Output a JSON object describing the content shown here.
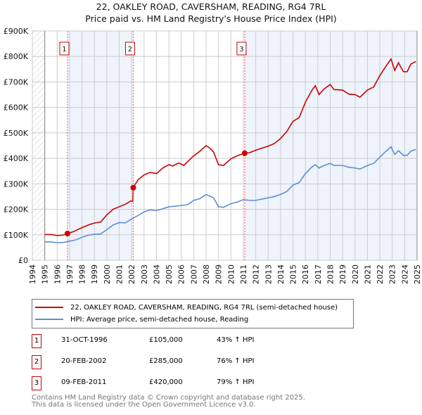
{
  "title_line1": "22, OAKLEY ROAD, CAVERSHAM, READING, RG4 7RL",
  "title_line2": "Price paid vs. HM Land Registry's House Price Index (HPI)",
  "colors": {
    "property": "#cc0000",
    "hpi": "#5b8fd4",
    "shade": "#eef3fc"
  },
  "chart_data": {
    "type": "line",
    "xlim": [
      1994,
      2025
    ],
    "ylim": [
      0,
      900000
    ],
    "ytick_labels": [
      "£0",
      "£100K",
      "£200K",
      "£300K",
      "£400K",
      "£500K",
      "£600K",
      "£700K",
      "£800K",
      "£900K"
    ],
    "yticks": [
      0,
      100000,
      200000,
      300000,
      400000,
      500000,
      600000,
      700000,
      800000,
      900000
    ],
    "xticks": [
      1994,
      1995,
      1996,
      1997,
      1998,
      1999,
      2000,
      2001,
      2002,
      2003,
      2004,
      2005,
      2006,
      2007,
      2008,
      2009,
      2010,
      2011,
      2012,
      2013,
      2014,
      2015,
      2016,
      2017,
      2018,
      2019,
      2020,
      2021,
      2022,
      2023,
      2024,
      2025
    ],
    "grid": true,
    "series": [
      {
        "name": "22, OAKLEY ROAD, CAVERSHAM, READING, RG4 7RL (semi-detached house)",
        "color": "#cc0000",
        "x": [
          1995,
          1995.5,
          1996,
          1996.5,
          1996.83,
          1997.3,
          1998,
          1998.6,
          1999,
          1999.5,
          2000,
          2000.5,
          2001,
          2001.5,
          2001.9,
          2002.1,
          2002.13,
          2002.5,
          2003,
          2003.5,
          2004,
          2004.5,
          2005,
          2005.3,
          2005.8,
          2006.2,
          2007,
          2007.5,
          2008,
          2008.3,
          2008.6,
          2009,
          2009.4,
          2010,
          2010.5,
          2011.1,
          2011.5,
          2012,
          2012.5,
          2013,
          2013.5,
          2014,
          2014.5,
          2015,
          2015.5,
          2016,
          2016.5,
          2016.8,
          2017.1,
          2017.5,
          2018,
          2018.3,
          2019,
          2019.5,
          2020,
          2020.4,
          2021,
          2021.5,
          2022,
          2022.5,
          2022.9,
          2023.2,
          2023.5,
          2023.9,
          2024.2,
          2024.5,
          2024.9
        ],
        "y": [
          101000,
          101000,
          97000,
          99000,
          105000,
          112000,
          128000,
          140000,
          146000,
          150000,
          178000,
          200000,
          210000,
          220000,
          232000,
          232000,
          285000,
          315000,
          335000,
          345000,
          340000,
          362000,
          375000,
          370000,
          382000,
          372000,
          410000,
          428000,
          450000,
          440000,
          425000,
          375000,
          372000,
          398000,
          410000,
          420000,
          422000,
          432000,
          440000,
          448000,
          458000,
          478000,
          505000,
          545000,
          560000,
          620000,
          665000,
          685000,
          650000,
          672000,
          690000,
          670000,
          668000,
          652000,
          650000,
          640000,
          668000,
          680000,
          725000,
          762000,
          790000,
          745000,
          775000,
          740000,
          740000,
          770000,
          780000
        ]
      },
      {
        "name": "HPI: Average price, semi-detached house, Reading",
        "color": "#5b8fd4",
        "x": [
          1995,
          1995.5,
          1996,
          1996.5,
          1997,
          1997.5,
          1998,
          1998.5,
          1999,
          1999.5,
          2000,
          2000.5,
          2001,
          2001.5,
          2002,
          2002.5,
          2003,
          2003.5,
          2004,
          2004.5,
          2005,
          2005.5,
          2006,
          2006.5,
          2007,
          2007.5,
          2008,
          2008.3,
          2008.6,
          2009,
          2009.4,
          2010,
          2010.5,
          2011,
          2011.5,
          2012,
          2012.5,
          2013,
          2013.5,
          2014,
          2014.5,
          2015,
          2015.5,
          2016,
          2016.5,
          2016.8,
          2017.1,
          2017.5,
          2018,
          2018.3,
          2019,
          2019.5,
          2020,
          2020.4,
          2021,
          2021.5,
          2022,
          2022.5,
          2022.9,
          2023.2,
          2023.5,
          2023.9,
          2024.2,
          2024.5,
          2024.9
        ],
        "y": [
          72000,
          72000,
          69000,
          70000,
          75000,
          80000,
          90000,
          98000,
          102000,
          103000,
          120000,
          138000,
          148000,
          147000,
          162000,
          175000,
          190000,
          198000,
          195000,
          202000,
          210000,
          212000,
          215000,
          218000,
          235000,
          242000,
          258000,
          252000,
          245000,
          210000,
          208000,
          222000,
          228000,
          238000,
          235000,
          235000,
          240000,
          245000,
          250000,
          258000,
          270000,
          295000,
          305000,
          340000,
          365000,
          375000,
          362000,
          372000,
          380000,
          372000,
          372000,
          365000,
          362000,
          358000,
          372000,
          380000,
          405000,
          428000,
          445000,
          415000,
          430000,
          412000,
          412000,
          428000,
          435000
        ]
      }
    ],
    "sales": [
      {
        "id": "1",
        "x": 1996.83,
        "price": 105000,
        "date": "31-OCT-1996",
        "price_label": "£105,000",
        "hpi_delta": "43% ↑ HPI"
      },
      {
        "id": "2",
        "x": 2002.13,
        "price": 285000,
        "date": "20-FEB-2002",
        "price_label": "£285,000",
        "hpi_delta": "76% ↑ HPI"
      },
      {
        "id": "3",
        "x": 2011.11,
        "price": 420000,
        "date": "09-FEB-2011",
        "price_label": "£420,000",
        "hpi_delta": "79% ↑ HPI"
      }
    ]
  },
  "footer_line1": "Contains HM Land Registry data © Crown copyright and database right 2025.",
  "footer_line2": "This data is licensed under the Open Government Licence v3.0."
}
